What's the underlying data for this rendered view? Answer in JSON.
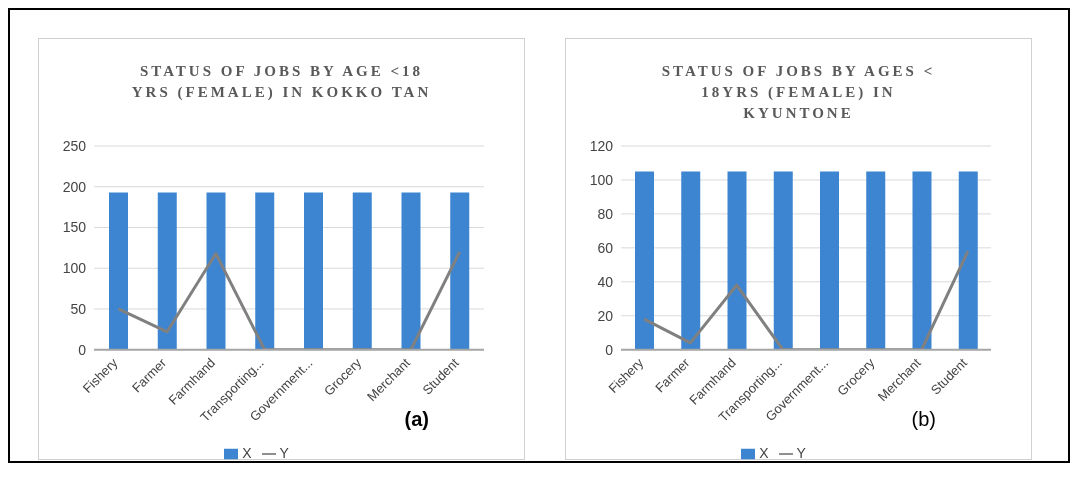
{
  "chart_data": [
    {
      "type": "bar",
      "title": "STATUS OF JOBS BY AGE <18 YRS (FEMALE) IN KOKKO TAN",
      "categories": [
        "Fishery",
        "Farmer",
        "Farmhand",
        "Transporting...",
        "Government...",
        "Grocery",
        "Merchant",
        "Student"
      ],
      "series": [
        {
          "name": "X",
          "color": "#3d85d1",
          "values": [
            193,
            193,
            193,
            193,
            193,
            193,
            193,
            193
          ]
        },
        {
          "name": "Y",
          "type": "line",
          "color": "#808080",
          "values": [
            50,
            22,
            118,
            0,
            0,
            0,
            0,
            120
          ]
        }
      ],
      "ylim": [
        0,
        250
      ],
      "yticks": [
        0,
        50,
        100,
        150,
        200,
        250
      ],
      "grid": "y",
      "legend": "bottom",
      "marker": "none",
      "annotations": [
        "(a)"
      ]
    },
    {
      "type": "bar",
      "title": "STATUS OF JOBS BY AGES < 18YRS (FEMALE) IN KYUNTONE",
      "categories": [
        "Fishery",
        "Farmer",
        "Farmhand",
        "Transporting...",
        "Government...",
        "Grocery",
        "Merchant",
        "Student"
      ],
      "series": [
        {
          "name": "X",
          "color": "#3d85d1",
          "values": [
            105,
            105,
            105,
            105,
            105,
            105,
            105,
            105
          ]
        },
        {
          "name": "Y",
          "type": "line",
          "color": "#808080",
          "values": [
            18,
            4,
            38,
            0,
            0,
            0,
            0,
            58
          ]
        }
      ],
      "ylim": [
        0,
        120
      ],
      "yticks": [
        0,
        20,
        40,
        60,
        80,
        100,
        120
      ],
      "grid": "y",
      "legend": "bottom",
      "marker": "none",
      "annotations": [
        "(b)"
      ]
    }
  ]
}
